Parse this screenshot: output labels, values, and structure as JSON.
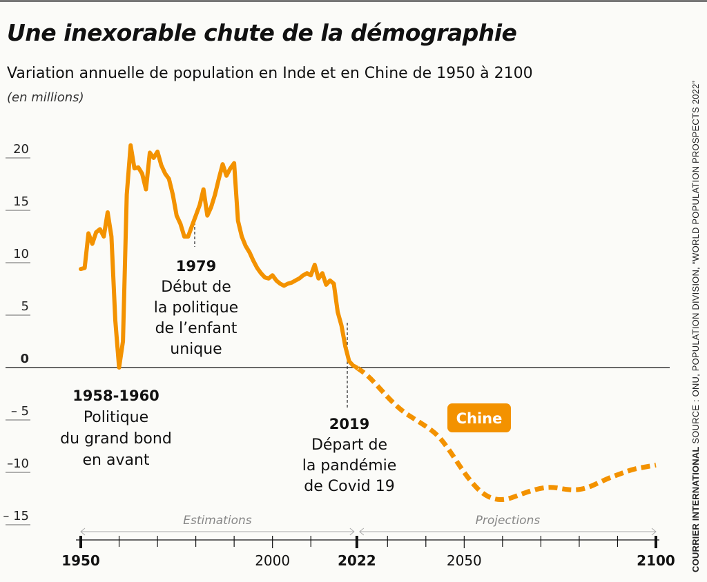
{
  "header": {
    "title": "Une inexorable chute de la démographie",
    "subtitle": "Variation annuelle de population en Inde et en Chine de 1950 à 2100",
    "units": "(en millions)"
  },
  "source": {
    "brand": "COURRIER INTERNATIONAL",
    "text": "SOURCE : ONU, POPULATION DIVISION, “WORLD POPULATION PROSPECTS 2022”"
  },
  "colors": {
    "line": "#f39200",
    "axis": "#111111",
    "muted": "#888888"
  },
  "chart_data": {
    "type": "line",
    "title": "Une inexorable chute de la démographie",
    "ylim": [
      -15,
      20
    ],
    "xlim": [
      1950,
      2100
    ],
    "y_ticks": [
      {
        "value": 20,
        "label": "20"
      },
      {
        "value": 15,
        "label": "15"
      },
      {
        "value": 10,
        "label": "10"
      },
      {
        "value": 5,
        "label": "5"
      },
      {
        "value": 0,
        "label": "0"
      },
      {
        "value": -5,
        "label": "– 5"
      },
      {
        "value": -10,
        "label": "–10"
      },
      {
        "value": -15,
        "label": "– 15"
      }
    ],
    "x_labels": [
      {
        "value": 1950,
        "label": "1950",
        "bold": true
      },
      {
        "value": 2000,
        "label": "2000",
        "bold": false
      },
      {
        "value": 2022,
        "label": "2022",
        "bold": true
      },
      {
        "value": 2050,
        "label": "2050",
        "bold": false
      },
      {
        "value": 2100,
        "label": "2100",
        "bold": true
      }
    ],
    "x_minor_ticks": [
      1960,
      1970,
      1980,
      1990,
      2010,
      2030,
      2040,
      2060,
      2070,
      2080,
      2090
    ],
    "periods": [
      {
        "label": "Estimations",
        "from": 1950,
        "to": 2022
      },
      {
        "label": "Projections",
        "from": 2022,
        "to": 2100
      }
    ],
    "series": [
      {
        "name": "Chine",
        "estimates": [
          [
            1950,
            9.4
          ],
          [
            1951,
            9.5
          ],
          [
            1952,
            12.8
          ],
          [
            1953,
            11.8
          ],
          [
            1954,
            12.9
          ],
          [
            1955,
            13.2
          ],
          [
            1956,
            12.5
          ],
          [
            1957,
            14.8
          ],
          [
            1958,
            12.5
          ],
          [
            1959,
            4.5
          ],
          [
            1960,
            0.0
          ],
          [
            1961,
            2.5
          ],
          [
            1962,
            16.5
          ],
          [
            1963,
            21.2
          ],
          [
            1964,
            19.0
          ],
          [
            1965,
            19.1
          ],
          [
            1966,
            18.5
          ],
          [
            1967,
            17.0
          ],
          [
            1968,
            20.5
          ],
          [
            1969,
            20.0
          ],
          [
            1970,
            20.6
          ],
          [
            1971,
            19.3
          ],
          [
            1972,
            18.5
          ],
          [
            1973,
            18.0
          ],
          [
            1974,
            16.5
          ],
          [
            1975,
            14.5
          ],
          [
            1976,
            13.7
          ],
          [
            1977,
            12.5
          ],
          [
            1978,
            12.5
          ],
          [
            1979,
            13.5
          ],
          [
            1980,
            14.5
          ],
          [
            1981,
            15.5
          ],
          [
            1982,
            17.0
          ],
          [
            1983,
            14.5
          ],
          [
            1984,
            15.3
          ],
          [
            1985,
            16.5
          ],
          [
            1986,
            18.0
          ],
          [
            1987,
            19.4
          ],
          [
            1988,
            18.3
          ],
          [
            1989,
            19.0
          ],
          [
            1990,
            19.5
          ],
          [
            1991,
            14.0
          ],
          [
            1992,
            12.5
          ],
          [
            1993,
            11.6
          ],
          [
            1994,
            11.0
          ],
          [
            1995,
            10.2
          ],
          [
            1996,
            9.5
          ],
          [
            1997,
            9.0
          ],
          [
            1998,
            8.6
          ],
          [
            1999,
            8.5
          ],
          [
            2000,
            8.8
          ],
          [
            2001,
            8.3
          ],
          [
            2002,
            8.0
          ],
          [
            2003,
            7.8
          ],
          [
            2004,
            8.0
          ],
          [
            2005,
            8.1
          ],
          [
            2006,
            8.3
          ],
          [
            2007,
            8.5
          ],
          [
            2008,
            8.8
          ],
          [
            2009,
            9.0
          ],
          [
            2010,
            8.8
          ],
          [
            2011,
            9.8
          ],
          [
            2012,
            8.5
          ],
          [
            2013,
            9.0
          ],
          [
            2014,
            7.9
          ],
          [
            2015,
            8.3
          ],
          [
            2016,
            8.0
          ],
          [
            2017,
            5.3
          ],
          [
            2018,
            4.0
          ],
          [
            2019,
            2.0
          ],
          [
            2020,
            0.6
          ],
          [
            2021,
            0.2
          ],
          [
            2022,
            0.0
          ]
        ],
        "projections": [
          [
            2022,
            0.0
          ],
          [
            2025,
            -0.8
          ],
          [
            2028,
            -2.0
          ],
          [
            2031,
            -3.2
          ],
          [
            2034,
            -4.2
          ],
          [
            2037,
            -4.9
          ],
          [
            2040,
            -5.6
          ],
          [
            2043,
            -6.4
          ],
          [
            2046,
            -7.8
          ],
          [
            2049,
            -9.5
          ],
          [
            2052,
            -11.0
          ],
          [
            2055,
            -12.1
          ],
          [
            2058,
            -12.6
          ],
          [
            2061,
            -12.6
          ],
          [
            2064,
            -12.2
          ],
          [
            2067,
            -11.8
          ],
          [
            2070,
            -11.5
          ],
          [
            2073,
            -11.4
          ],
          [
            2076,
            -11.6
          ],
          [
            2079,
            -11.7
          ],
          [
            2082,
            -11.5
          ],
          [
            2085,
            -11.0
          ],
          [
            2088,
            -10.5
          ],
          [
            2091,
            -10.1
          ],
          [
            2094,
            -9.7
          ],
          [
            2097,
            -9.5
          ],
          [
            2100,
            -9.3
          ]
        ]
      }
    ],
    "annotations": [
      {
        "year": 1959,
        "value": 0,
        "label": "1958-1960",
        "lines": [
          "Politique",
          "du grand bond",
          "en avant"
        ]
      },
      {
        "year": 1979,
        "value": 13.5,
        "label": "1979",
        "lines": [
          "Début de",
          "la politique",
          "de l’enfant",
          "unique"
        ]
      },
      {
        "year": 2019,
        "value": 4.5,
        "label": "2019",
        "lines": [
          "Départ de",
          "la pandémie",
          "de Covid 19"
        ]
      }
    ]
  }
}
